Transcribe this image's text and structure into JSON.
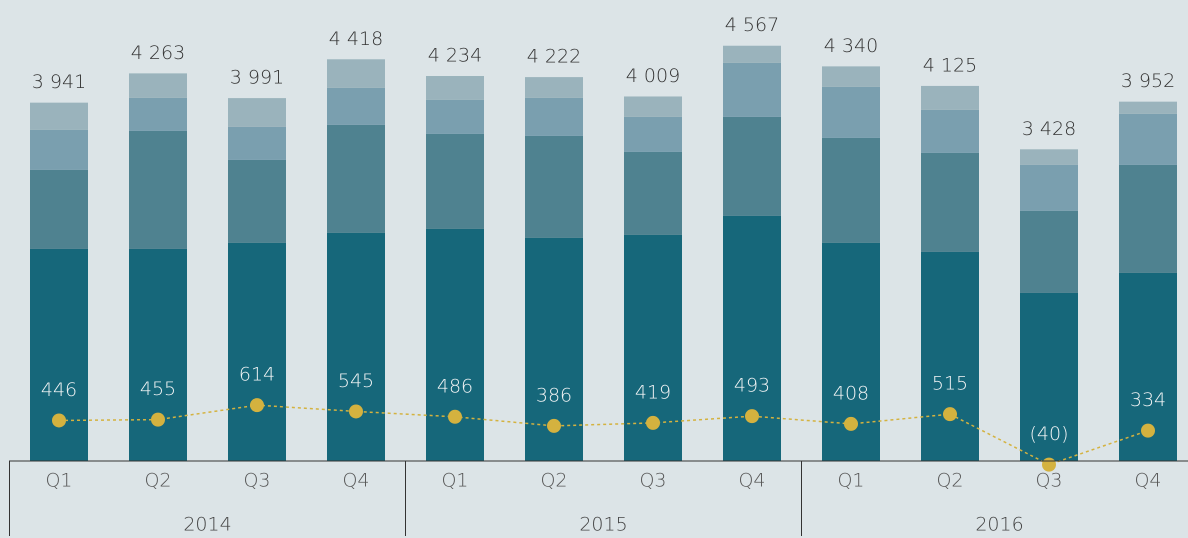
{
  "chart_data": {
    "type": "stacked_bar_line",
    "categories": [
      "Q1",
      "Q2",
      "Q3",
      "Q4",
      "Q1",
      "Q2",
      "Q3",
      "Q4",
      "Q1",
      "Q2",
      "Q3",
      "Q4"
    ],
    "groups": [
      {
        "label": "2014",
        "size": 4
      },
      {
        "label": "2015",
        "size": 4
      },
      {
        "label": "2016",
        "size": 4
      }
    ],
    "ylim": [
      0,
      5070
    ],
    "series": [
      {
        "color": "#16677a",
        "values": [
          2332,
          2332,
          2398,
          2508,
          2552,
          2453,
          2486,
          2695,
          2398,
          2299,
          1848,
          2068
        ]
      },
      {
        "color": "#4f8290",
        "values": [
          869,
          1298,
          913,
          1188,
          1045,
          1122,
          913,
          1089,
          1155,
          1089,
          902,
          1188
        ]
      },
      {
        "color": "#7a9faf",
        "values": [
          440,
          363,
          363,
          407,
          374,
          418,
          385,
          594,
          561,
          473,
          506,
          561
        ]
      },
      {
        "color": "#9ab3bc",
        "values": [
          300,
          270,
          317,
          315,
          263,
          229,
          225,
          189,
          226,
          264,
          172,
          135
        ]
      }
    ],
    "totals": [
      3941,
      4263,
      3991,
      4418,
      4234,
      4222,
      4009,
      4567,
      4340,
      4125,
      3428,
      3952
    ],
    "total_labels": [
      "3 941",
      "4 263",
      "3 991",
      "4 418",
      "4 234",
      "4 222",
      "4 009",
      "4 567",
      "4 340",
      "4 125",
      "3 428",
      "3 952"
    ],
    "line": {
      "color": "#d4b23f",
      "values": [
        446,
        455,
        614,
        545,
        486,
        386,
        419,
        493,
        408,
        515,
        -40,
        334
      ],
      "value_labels": [
        "446",
        "455",
        "614",
        "545",
        "486",
        "386",
        "419",
        "493",
        "408",
        "515",
        "(40)",
        "334"
      ]
    }
  }
}
